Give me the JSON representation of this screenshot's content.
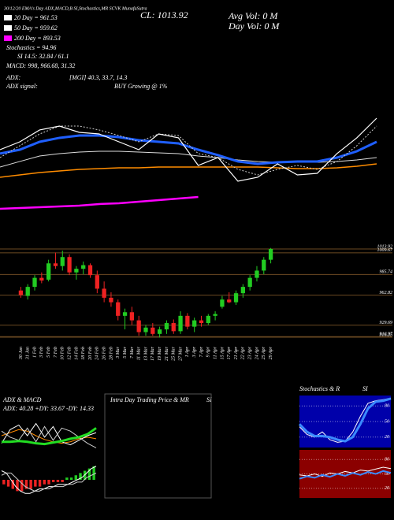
{
  "header": {
    "caption": "30/12/20 EMA's Day ADX,MACD,B SI,Stochastics,MR SCVK MunafaSutra",
    "ema": [
      {
        "label": "20 Day = 961.53",
        "color": "#ffffff"
      },
      {
        "label": "50 Day = 959.62",
        "color": "#ffffff"
      },
      {
        "label": "200 Day = 893.53",
        "color": "#ff00ff"
      }
    ],
    "stochastics": "Stochastics = 94.96",
    "si": "SI 14.5: 32.84 / 61.1",
    "macd": "MACD: 998, 966.68, 31.32",
    "adx": "ADX:",
    "adx_values": "[MGI] 40.3, 33.7, 14.3",
    "adx_signal_label": "ADX  signal:",
    "adx_signal": "BUY Growing @ 1%",
    "close": "CL: 1013.92",
    "avg_vol": "Avg Vol: 0  M",
    "day_vol": "Day Vol: 0  M"
  },
  "panels": {
    "adx_title": "ADX  & MACD",
    "adx_values": "ADX: 40.28  +DY: 33.67  -DY: 14.33",
    "intraday_title": "Intra  Day Trading Price  & MR",
    "intraday_si": "SI",
    "stoch_title": "Stochastics & R",
    "stoch_si": "SI"
  },
  "chart_data": [
    {
      "type": "line",
      "ylim": [
        850,
        1060
      ],
      "series": [
        {
          "color": "#ff00ff",
          "width": 2.5,
          "values": [
            886.8,
            887.8,
            888.9,
            889.9,
            891,
            893.1,
            894.1,
            896.2,
            898.3,
            900.4,
            902.5,
            null,
            null,
            null,
            null,
            null,
            null,
            null,
            null,
            null
          ]
        },
        {
          "color": "#ff8c00",
          "width": 1.5,
          "values": [
            928.8,
            931.9,
            935.1,
            937.2,
            939.3,
            940.3,
            941.4,
            941.4,
            942.4,
            942.4,
            942.4,
            942.4,
            942.4,
            942.4,
            941.4,
            940.3,
            940.3,
            941.4,
            943.5,
            946.6
          ]
        },
        {
          "color": "#dddddd",
          "width": 1,
          "values": [
            942.4,
            949.8,
            957.1,
            960.3,
            962.4,
            963.4,
            963.4,
            962.4,
            961.3,
            960.3,
            957.1,
            955,
            951.9,
            949.8,
            948.7,
            948.7,
            948.7,
            949.8,
            951.9,
            955
          ]
        },
        {
          "color": "#1f5fff",
          "width": 3,
          "values": [
            960.3,
            965.5,
            976,
            981.3,
            984.4,
            984.4,
            982.3,
            978.1,
            976,
            973.9,
            965.5,
            958.2,
            949.8,
            946.6,
            948.7,
            949.8,
            949.8,
            955,
            963.4,
            976
          ]
        },
        {
          "color": "#cccccc",
          "width": 1,
          "dash": true,
          "values": [
            955,
            970.8,
            986.5,
            997,
            997,
            991.8,
            984.4,
            976,
            986.5,
            984.4,
            960.3,
            955,
            939.3,
            931.9,
            939.3,
            944.5,
            939.3,
            949.8,
            970.8,
            997
          ]
        },
        {
          "color": "#ffffff",
          "width": 1.2,
          "values": [
            965.5,
            976,
            991.8,
            997,
            988.6,
            986.5,
            976,
            965.5,
            986.5,
            981.3,
            944.5,
            955,
            923.5,
            928.8,
            946.6,
            931.9,
            934,
            960.3,
            981.3,
            1007.5
          ]
        }
      ]
    },
    {
      "type": "candlestick",
      "ylim": [
        912,
        1020
      ],
      "yticks": [
        1013.92,
        1009.67,
        985.74,
        962.82,
        929.69,
        916.97,
        916.35
      ],
      "grid_color": "#6b4a22",
      "up_color": "#22cc22",
      "down_color": "#ee2222",
      "categories": [
        "30 Jan",
        "31 Jan",
        "1 Feb",
        "3 Feb",
        "5 Feb",
        "7 Feb",
        "10 Feb",
        "12 Feb",
        "14 Feb",
        "18 Feb",
        "20 Feb",
        "24 Feb",
        "26 Feb",
        "28 Feb",
        "3 Mar",
        "5 Mar",
        "7 Mar",
        "11 Mar",
        "13 Mar",
        "17 Mar",
        "19 Mar",
        "21 Mar",
        "25 Mar",
        "27 Mar",
        "1 Apr",
        "3 Apr",
        "7 Apr",
        "9 Apr",
        "11 Apr",
        "15 Apr",
        "17 Apr",
        "21 Apr",
        "22 Apr",
        "23 Apr",
        "24 Apr",
        "25 Apr",
        "29 Apr"
      ],
      "open": [
        968,
        962,
        972,
        982,
        980,
        998,
        995,
        1005,
        988,
        992,
        996,
        985,
        970,
        960,
        955,
        940,
        944,
        935,
        922,
        927,
        920,
        925,
        932,
        923,
        940,
        928,
        935,
        932,
        940,
        950,
        958,
        955,
        965,
        972,
        982,
        990,
        1002
      ],
      "high": [
        972,
        975,
        985,
        988,
        1002,
        1010,
        1012,
        1008,
        995,
        1000,
        998,
        990,
        978,
        966,
        958,
        948,
        950,
        940,
        930,
        932,
        928,
        935,
        936,
        945,
        943,
        938,
        940,
        942,
        945,
        962,
        966,
        968,
        975,
        985,
        995,
        1005,
        1015
      ],
      "low": [
        960,
        958,
        968,
        976,
        978,
        992,
        990,
        985,
        980,
        986,
        982,
        965,
        955,
        950,
        935,
        925,
        930,
        918,
        918,
        918,
        916,
        920,
        920,
        920,
        925,
        922,
        928,
        930,
        935,
        948,
        954,
        952,
        960,
        968,
        978,
        986,
        998
      ],
      "close": [
        963,
        972,
        982,
        979,
        998,
        995,
        1005,
        988,
        992,
        996,
        985,
        970,
        960,
        955,
        940,
        944,
        935,
        922,
        927,
        920,
        925,
        932,
        923,
        940,
        928,
        935,
        932,
        940,
        942,
        958,
        955,
        965,
        972,
        982,
        990,
        1002,
        1013.92
      ]
    },
    {
      "type": "line",
      "ylim": [
        0,
        60
      ],
      "series": [
        {
          "color": "#ff8c00",
          "width": 1,
          "values": [
            30,
            34,
            38,
            36,
            30,
            25,
            22,
            20,
            22,
            26,
            28,
            26
          ]
        },
        {
          "color": "#ffffff",
          "width": 1,
          "values": [
            20,
            38,
            44,
            30,
            46,
            28,
            42,
            22,
            18,
            24,
            30,
            34
          ]
        },
        {
          "color": "#cccccc",
          "width": 1,
          "values": [
            36,
            28,
            24,
            40,
            22,
            42,
            24,
            40,
            36,
            28,
            20,
            14
          ]
        },
        {
          "color": "#22dd22",
          "width": 3,
          "values": [
            22,
            22,
            23,
            22,
            20,
            19,
            21,
            23,
            26,
            28,
            32,
            40
          ]
        }
      ]
    },
    {
      "type": "bar",
      "ylim": [
        -8,
        8
      ],
      "up_color": "#22cc22",
      "down_color": "#ee2222",
      "values": [
        -2,
        -3,
        -4,
        -5,
        -5,
        -4,
        -4,
        -3,
        -3,
        -2,
        -2,
        -1,
        -1,
        -1,
        1,
        1,
        2,
        3,
        4,
        5,
        6
      ],
      "series": [
        {
          "color": "#ffffff",
          "width": 1,
          "values": [
            4,
            3,
            0,
            -3,
            -5,
            -6,
            -6,
            -5,
            -4,
            -4,
            -3,
            -3,
            -2,
            -2,
            -2,
            -1,
            0,
            1,
            3,
            5,
            6
          ]
        },
        {
          "color": "#cccccc",
          "width": 1,
          "values": [
            2,
            3,
            3,
            1,
            -1,
            -3,
            -4,
            -5,
            -5,
            -4,
            -4,
            -3,
            -3,
            -3,
            -2,
            -2,
            -1,
            -1,
            1,
            2,
            3
          ]
        }
      ]
    },
    {
      "type": "line",
      "ylim": [
        0,
        100
      ],
      "yticks": [
        80,
        50,
        20
      ],
      "bg": "#0000aa",
      "series": [
        {
          "color": "#ffffff",
          "width": 1,
          "values": [
            40,
            25,
            20,
            30,
            15,
            10,
            12,
            30,
            60,
            85,
            90,
            92,
            94.96
          ]
        },
        {
          "color": "#3a8aff",
          "width": 3,
          "values": [
            45,
            30,
            22,
            22,
            20,
            15,
            12,
            20,
            45,
            75,
            88,
            90,
            94
          ]
        }
      ]
    },
    {
      "type": "line",
      "ylim": [
        0,
        100
      ],
      "yticks": [
        80,
        50,
        20
      ],
      "bg": "#8b0000",
      "series": [
        {
          "color": "#ffffff",
          "width": 1,
          "values": [
            48,
            46,
            50,
            45,
            52,
            50,
            55,
            52,
            58,
            56,
            60,
            64,
            61.1
          ]
        },
        {
          "color": "#3a8aff",
          "width": 2,
          "values": [
            40,
            45,
            42,
            48,
            44,
            50,
            46,
            52,
            48,
            54,
            50,
            56,
            52
          ]
        }
      ]
    }
  ]
}
